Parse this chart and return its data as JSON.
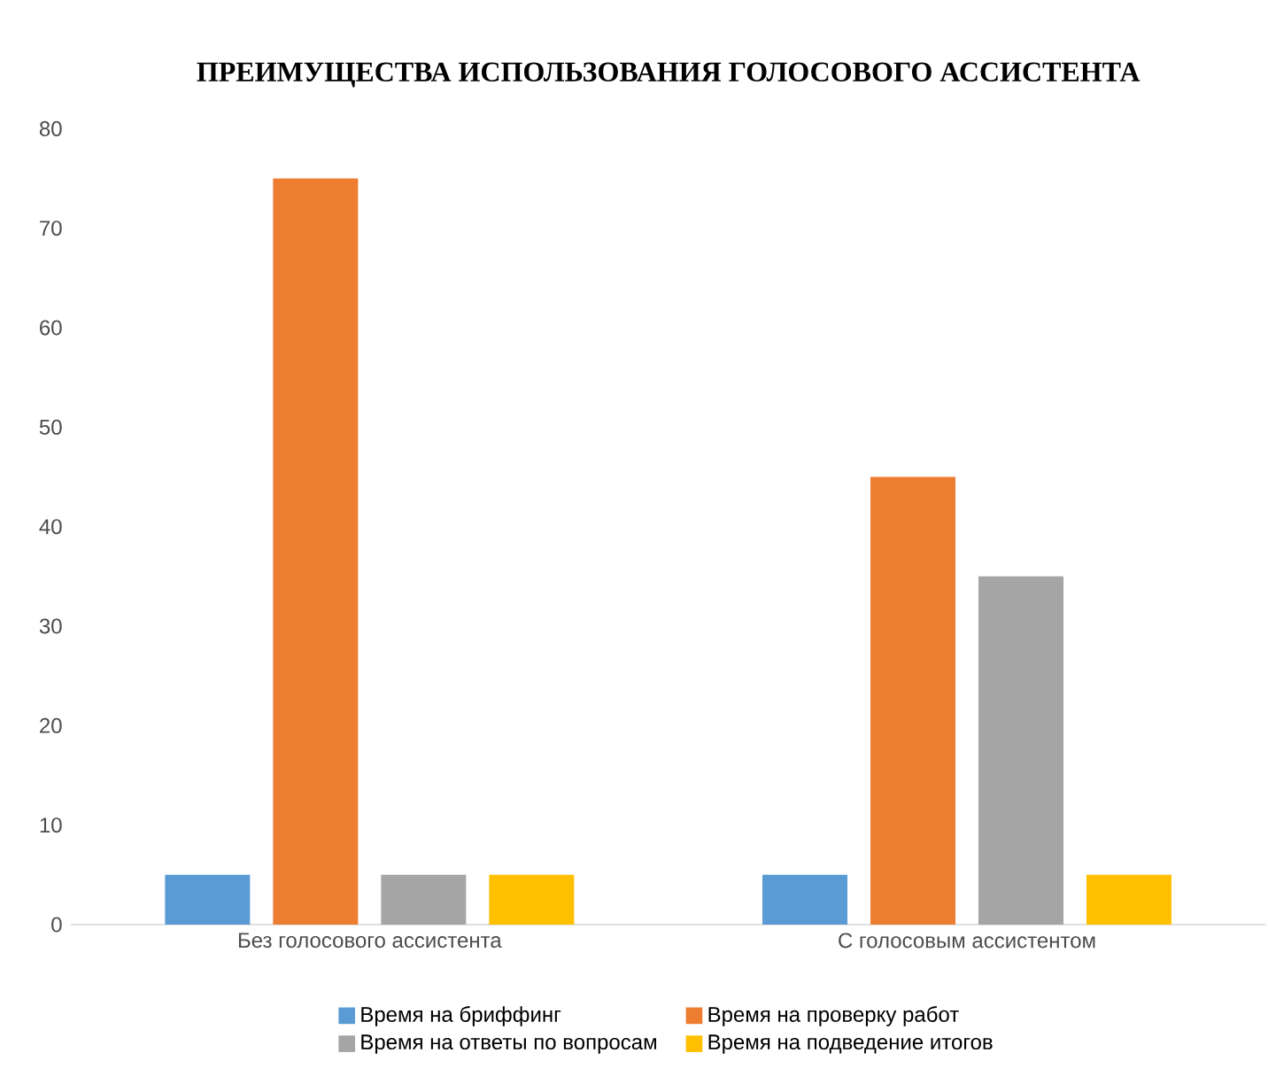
{
  "chart_data": {
    "type": "bar",
    "title": "ПРЕИМУЩЕСТВА ИСПОЛЬЗОВАНИЯ ГОЛОСОВОГО АССИСТЕНТА",
    "categories": [
      "Без голосового ассистента",
      "С голосовым ассистентом"
    ],
    "series": [
      {
        "name": "Время на бриффинг",
        "color": "#5b9bd5",
        "values": [
          5,
          5
        ]
      },
      {
        "name": "Время на проверку работ",
        "color": "#ed7d31",
        "values": [
          75,
          45
        ]
      },
      {
        "name": "Время на ответы по вопросам",
        "color": "#a5a5a5",
        "values": [
          5,
          35
        ]
      },
      {
        "name": "Время на подведение итогов",
        "color": "#ffc000",
        "values": [
          5,
          5
        ]
      }
    ],
    "ylim": [
      0,
      80
    ],
    "yticks": [
      0,
      10,
      20,
      30,
      40,
      50,
      60,
      70,
      80
    ],
    "legend": "bottom"
  }
}
